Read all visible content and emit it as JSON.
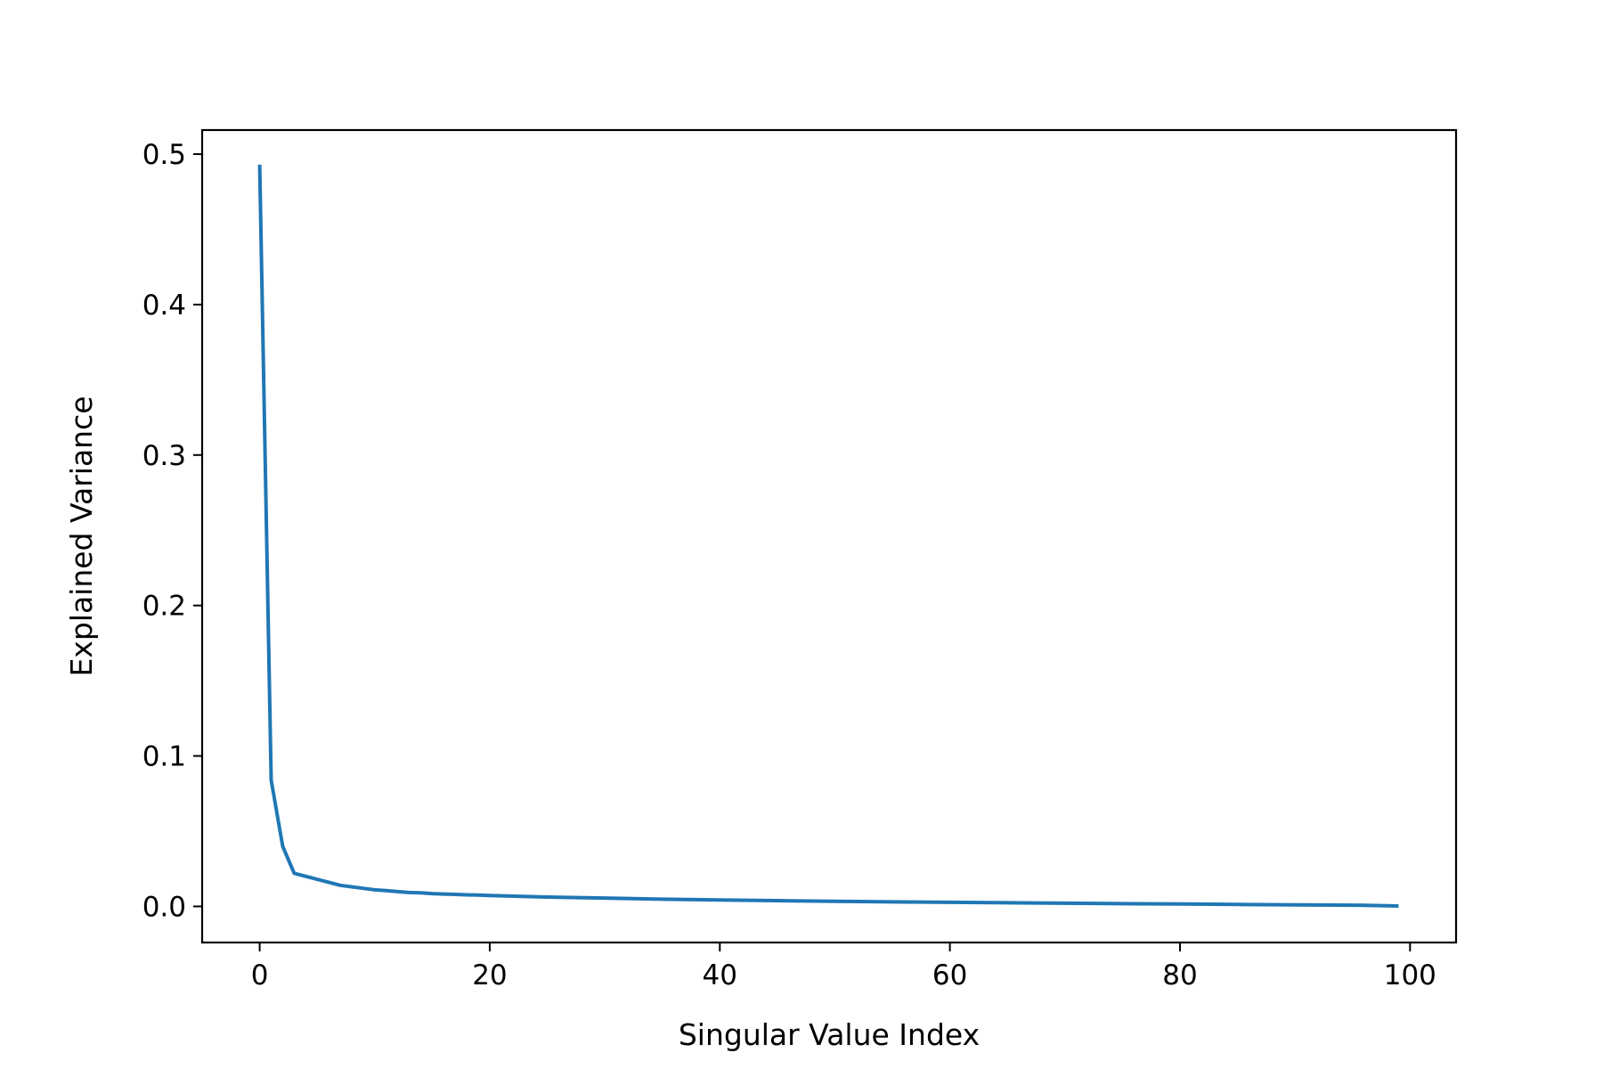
{
  "chart_data": {
    "type": "line",
    "title": "",
    "xlabel": "Singular Value Index",
    "ylabel": "Explained Variance",
    "xlim": [
      -5,
      104
    ],
    "ylim": [
      -0.024,
      0.516
    ],
    "xticks": [
      0,
      20,
      40,
      60,
      80,
      100
    ],
    "yticks": [
      0.0,
      0.1,
      0.2,
      0.3,
      0.4,
      0.5
    ],
    "xtick_labels": [
      "0",
      "20",
      "40",
      "60",
      "80",
      "100"
    ],
    "ytick_labels": [
      "0.0",
      "0.1",
      "0.2",
      "0.3",
      "0.4",
      "0.5"
    ],
    "grid": false,
    "legend": "none",
    "series": [
      {
        "color": "#1f77b4",
        "x": [
          0,
          1,
          2,
          3,
          4,
          5,
          6,
          7,
          8,
          9,
          10,
          11,
          12,
          13,
          14,
          15,
          16,
          17,
          18,
          19,
          20,
          25,
          30,
          35,
          40,
          45,
          50,
          55,
          60,
          65,
          70,
          75,
          80,
          85,
          90,
          95,
          97,
          99
        ],
        "y": [
          0.493,
          0.084,
          0.04,
          0.022,
          0.02,
          0.018,
          0.016,
          0.014,
          0.013,
          0.012,
          0.011,
          0.0105,
          0.0098,
          0.0092,
          0.009,
          0.0085,
          0.0082,
          0.008,
          0.0077,
          0.0075,
          0.0072,
          0.0062,
          0.0055,
          0.0048,
          0.0043,
          0.0038,
          0.0034,
          0.003,
          0.0027,
          0.0024,
          0.0021,
          0.0018,
          0.0016,
          0.0013,
          0.001,
          0.0008,
          0.0006,
          0.0003
        ]
      }
    ]
  }
}
